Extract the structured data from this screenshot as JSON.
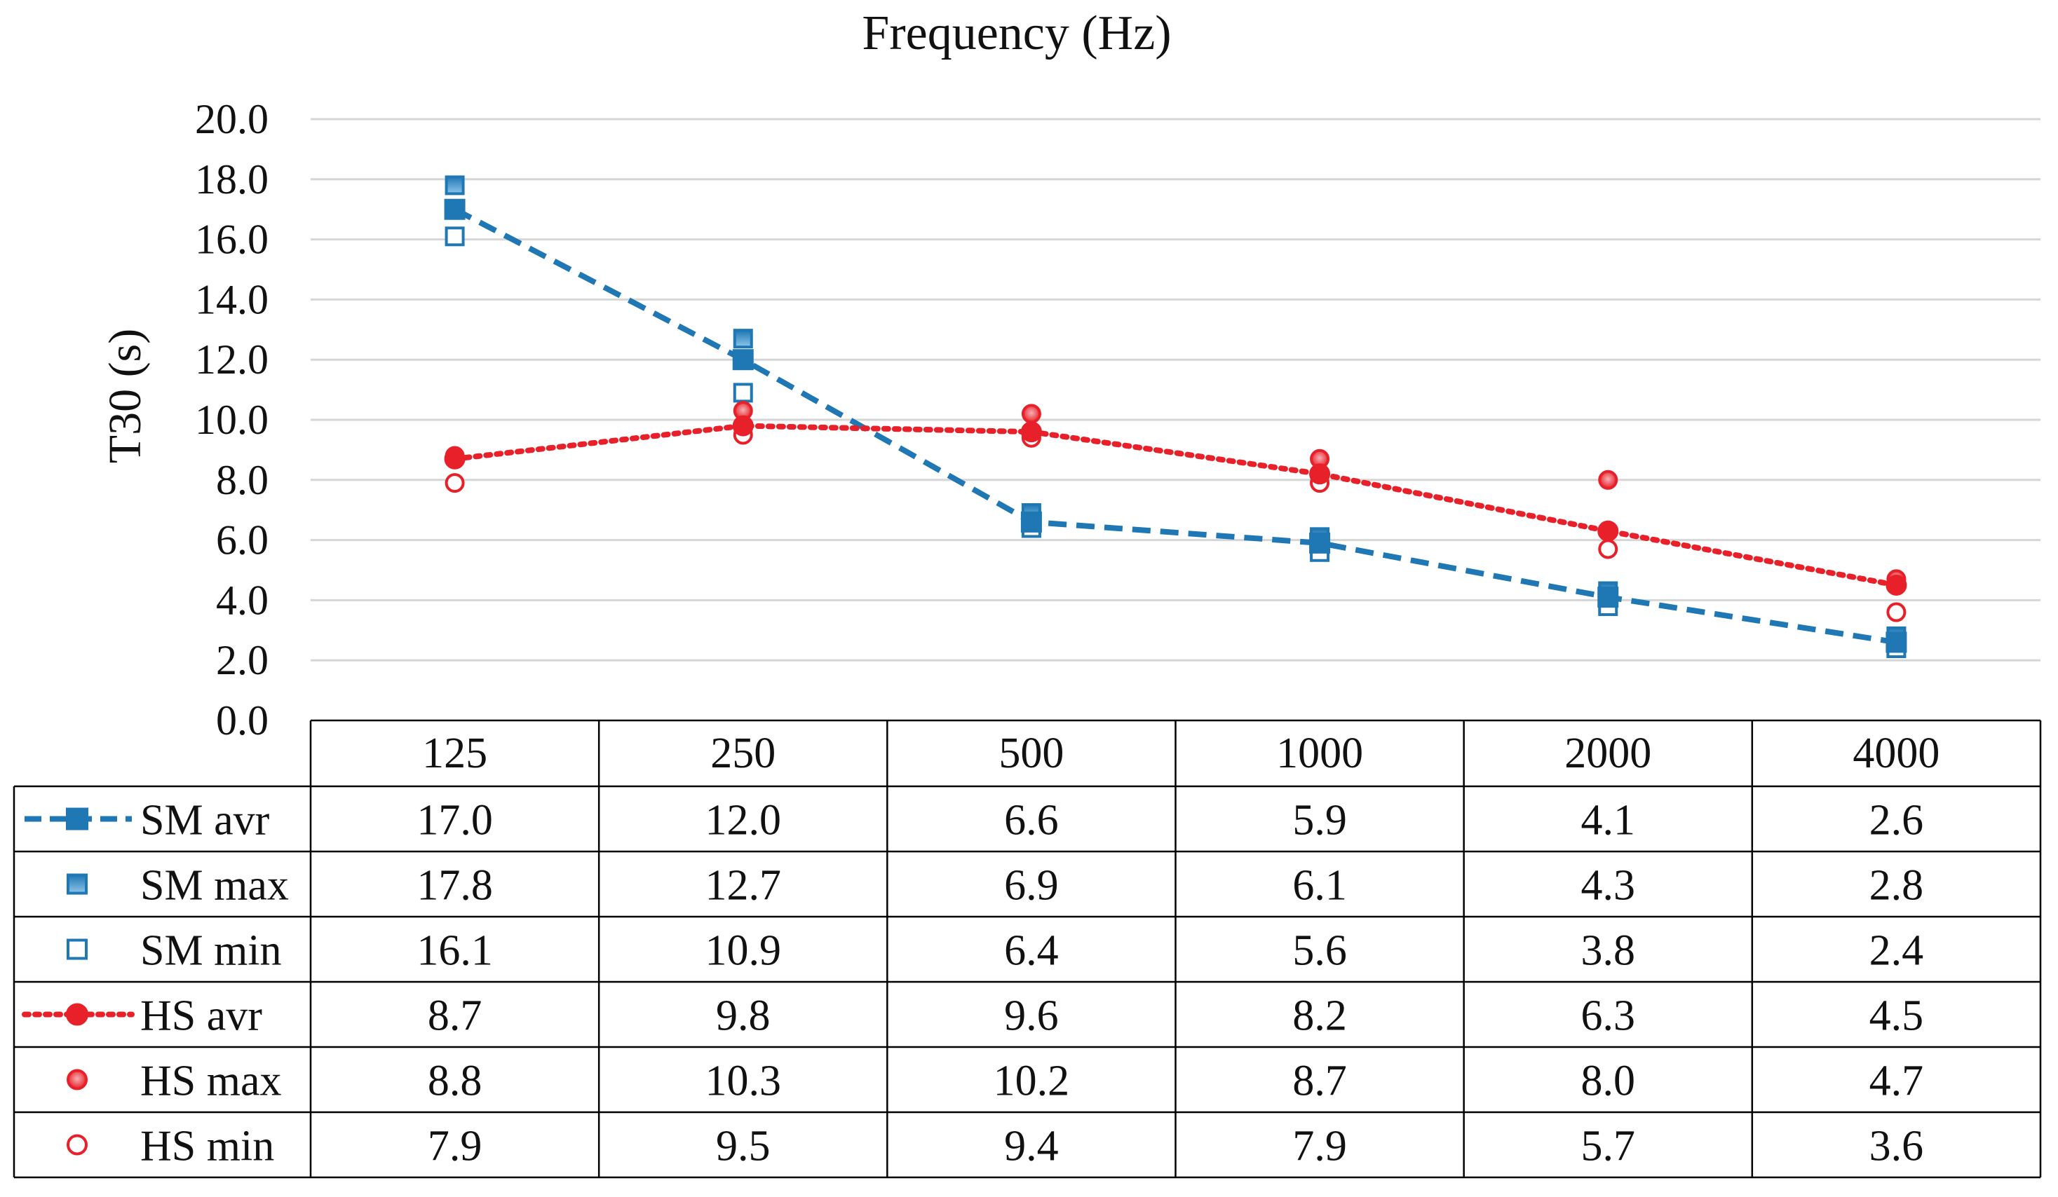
{
  "chart_data": {
    "type": "line",
    "title": "Frequency  (Hz)",
    "xlabel": "Frequency (Hz)",
    "ylabel": "T30 (s)",
    "ylim": [
      0,
      20
    ],
    "yticks": [
      "0.0",
      "2.0",
      "4.0",
      "6.0",
      "8.0",
      "10.0",
      "12.0",
      "14.0",
      "16.0",
      "18.0",
      "20.0"
    ],
    "grid": true,
    "categories": [
      "125",
      "250",
      "500",
      "1000",
      "2000",
      "4000"
    ],
    "series": [
      {
        "name": "SM avr",
        "values": [
          17.0,
          12.0,
          6.6,
          5.9,
          4.1,
          2.6
        ],
        "labels": [
          "17.0",
          "12.0",
          "6.6",
          "5.9",
          "4.1",
          "2.6"
        ],
        "color": "#1f77b4",
        "line": "dashed",
        "marker": "square-filled"
      },
      {
        "name": "SM max",
        "values": [
          17.8,
          12.7,
          6.9,
          6.1,
          4.3,
          2.8
        ],
        "labels": [
          "17.8",
          "12.7",
          "6.9",
          "6.1",
          "4.3",
          "2.8"
        ],
        "color": "#1f77b4",
        "line": "none",
        "marker": "square-gradient"
      },
      {
        "name": "SM min",
        "values": [
          16.1,
          10.9,
          6.4,
          5.6,
          3.8,
          2.4
        ],
        "labels": [
          "16.1",
          "10.9",
          "6.4",
          "5.6",
          "3.8",
          "2.4"
        ],
        "color": "#1f77b4",
        "line": "none",
        "marker": "square-open"
      },
      {
        "name": "HS avr",
        "values": [
          8.7,
          9.8,
          9.6,
          8.2,
          6.3,
          4.5
        ],
        "labels": [
          "8.7",
          "9.8",
          "9.6",
          "8.2",
          "6.3",
          "4.5"
        ],
        "color": "#e8202a",
        "line": "dotted",
        "marker": "circle-filled"
      },
      {
        "name": "HS max",
        "values": [
          8.8,
          10.3,
          10.2,
          8.7,
          8.0,
          4.7
        ],
        "labels": [
          "8.8",
          "10.3",
          "10.2",
          "8.7",
          "8.0",
          "4.7"
        ],
        "color": "#e8202a",
        "line": "none",
        "marker": "circle-gradient"
      },
      {
        "name": "HS min",
        "values": [
          7.9,
          9.5,
          9.4,
          7.9,
          5.7,
          3.6
        ],
        "labels": [
          "7.9",
          "9.5",
          "9.4",
          "7.9",
          "5.7",
          "3.6"
        ],
        "color": "#e8202a",
        "line": "none",
        "marker": "circle-open"
      }
    ]
  }
}
